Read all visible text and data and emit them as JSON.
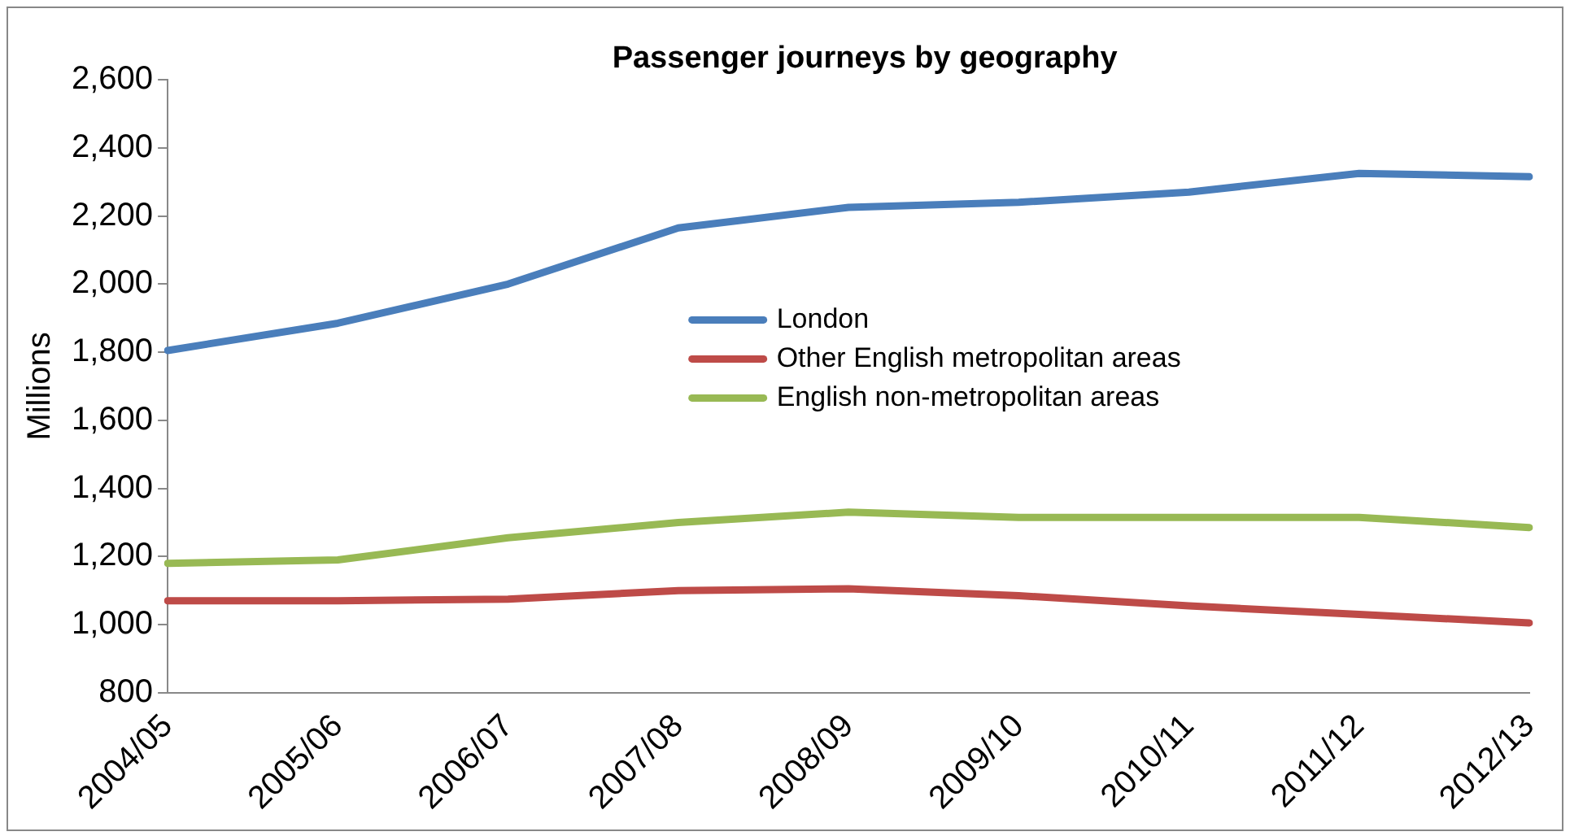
{
  "chart_data": {
    "type": "line",
    "title": "Passenger journeys by geography",
    "ylabel": "Millions",
    "categories": [
      "2004/05",
      "2005/06",
      "2006/07",
      "2007/08",
      "2008/09",
      "2009/10",
      "2010/11",
      "2011/12",
      "2012/13"
    ],
    "series": [
      {
        "name": "London",
        "color": "#4a7ebb",
        "values": [
          1805,
          1885,
          2000,
          2165,
          2225,
          2240,
          2270,
          2325,
          2315
        ]
      },
      {
        "name": "Other English metropolitan areas",
        "color": "#be4b48",
        "values": [
          1070,
          1070,
          1075,
          1100,
          1105,
          1085,
          1055,
          1030,
          1005
        ]
      },
      {
        "name": "English non-metropolitan areas",
        "color": "#98b954",
        "values": [
          1180,
          1190,
          1255,
          1300,
          1330,
          1315,
          1315,
          1315,
          1285
        ]
      }
    ],
    "ylim": [
      800,
      2600
    ],
    "yticks": [
      800,
      {
        "value": 1000,
        "label": "1,000"
      },
      {
        "value": 1200,
        "label": "1,200"
      },
      {
        "value": 1400,
        "label": "1,400"
      },
      {
        "value": 1600,
        "label": "1,600"
      },
      {
        "value": 1800,
        "label": "1,800"
      },
      {
        "value": 2000,
        "label": "2,000"
      },
      {
        "value": 2200,
        "label": "2,200"
      },
      {
        "value": 2400,
        "label": "2,400"
      },
      {
        "value": 2600,
        "label": "2,600"
      }
    ],
    "grid": false,
    "legend": "center",
    "marker": "none",
    "line_style": "solid"
  }
}
